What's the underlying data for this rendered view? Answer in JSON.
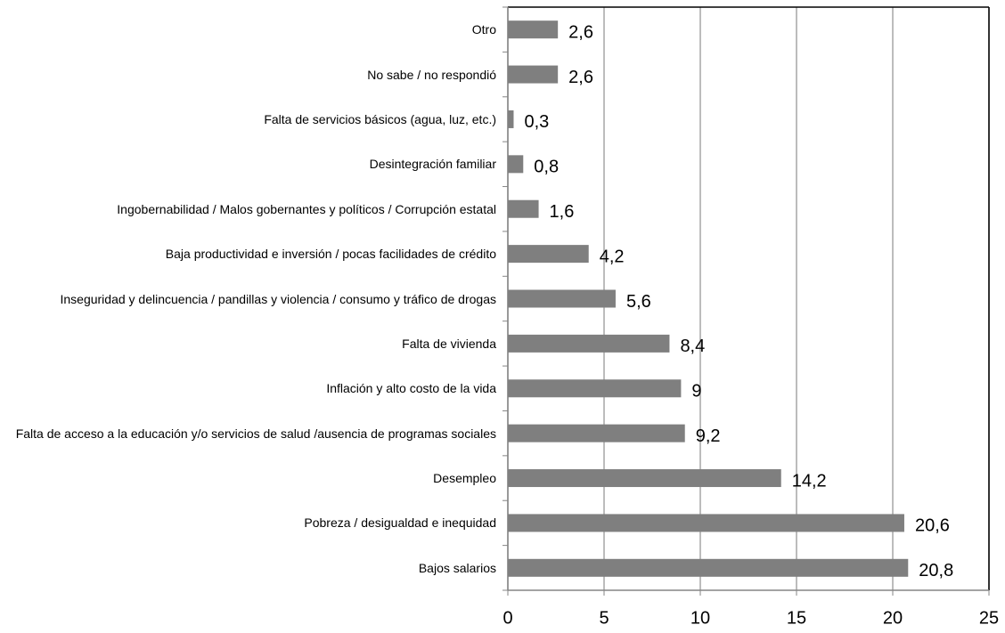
{
  "chart_data": {
    "type": "bar",
    "orientation": "horizontal",
    "categories": [
      "Otro",
      "No sabe / no respondió",
      "Falta de servicios básicos (agua, luz, etc.)",
      "Desintegración familiar",
      "Ingobernabilidad / Malos gobernantes y políticos / Corrupción estatal",
      "Baja productividad e inversión / pocas facilidades de crédito",
      "Inseguridad y delincuencia / pandillas y violencia / consumo y tráfico de drogas",
      "Falta de vivienda",
      "Inflación y alto costo de la vida",
      "Falta de acceso a la educación y/o servicios de salud /ausencia de programas sociales",
      "Desempleo",
      "Pobreza / desigualdad e inequidad",
      "Bajos salarios"
    ],
    "values": [
      2.6,
      2.6,
      0.3,
      0.8,
      1.6,
      4.2,
      5.6,
      8.4,
      9,
      9.2,
      14.2,
      20.6,
      20.8
    ],
    "value_labels": [
      "2,6",
      "2,6",
      "0,3",
      "0,8",
      "1,6",
      "4,2",
      "5,6",
      "8,4",
      "9",
      "9,2",
      "14,2",
      "20,6",
      "20,8"
    ],
    "color": "#7f7f7f",
    "xlim": [
      0,
      25
    ],
    "xticks": [
      0,
      5,
      10,
      15,
      20,
      25
    ],
    "grid": true
  }
}
